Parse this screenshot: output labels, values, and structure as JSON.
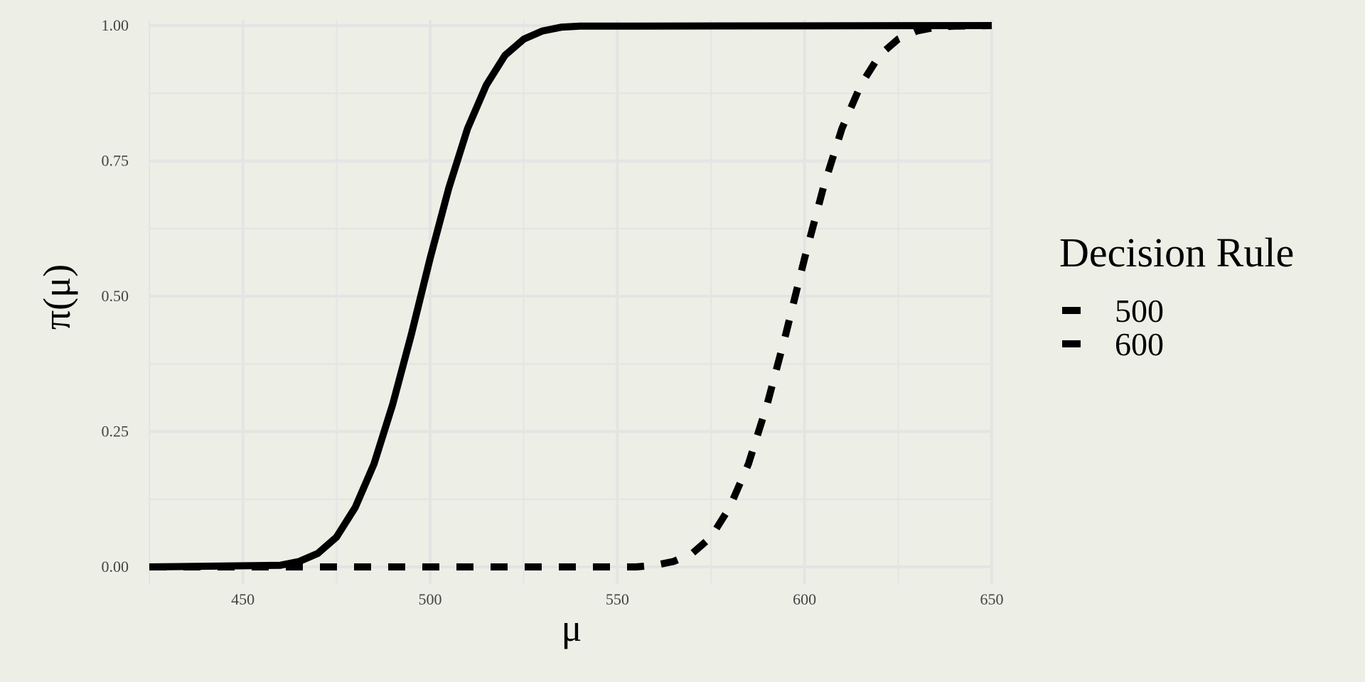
{
  "chart_data": {
    "type": "line",
    "title": "",
    "xlabel": "μ",
    "ylabel": "π(μ)",
    "xlim": [
      425,
      650
    ],
    "ylim": [
      0,
      1
    ],
    "x_ticks": [
      450,
      500,
      550,
      600,
      650
    ],
    "x_tick_labels": [
      "450",
      "500",
      "550",
      "600",
      "650"
    ],
    "y_ticks": [
      0,
      0.25,
      0.5,
      0.75,
      1
    ],
    "y_tick_labels": [
      "0.00",
      "0.25",
      "0.50",
      "0.75",
      "1.00"
    ],
    "grid": true,
    "legend": {
      "title": "Decision Rule",
      "position": "right"
    },
    "series": [
      {
        "name": "500",
        "line_style": "solid",
        "x": [
          425,
          460,
          465,
          470,
          475,
          480,
          485,
          490,
          495,
          500,
          505,
          510,
          515,
          520,
          525,
          530,
          535,
          540,
          650
        ],
        "y": [
          0.0,
          0.003,
          0.01,
          0.025,
          0.055,
          0.11,
          0.19,
          0.3,
          0.43,
          0.57,
          0.7,
          0.81,
          0.89,
          0.945,
          0.975,
          0.99,
          0.997,
          0.999,
          1.0
        ]
      },
      {
        "name": "600",
        "line_style": "dashed",
        "x": [
          425,
          555,
          560,
          565,
          570,
          575,
          580,
          585,
          590,
          595,
          600,
          605,
          610,
          615,
          620,
          625,
          630,
          635,
          640,
          650
        ],
        "y": [
          0.0,
          0.0,
          0.003,
          0.01,
          0.025,
          0.055,
          0.11,
          0.19,
          0.3,
          0.43,
          0.57,
          0.7,
          0.81,
          0.89,
          0.945,
          0.975,
          0.99,
          0.997,
          0.999,
          1.0
        ]
      }
    ],
    "colors": {
      "background": "#edeee6",
      "grid": "#e4e4e4",
      "line": "#000000",
      "tick_text": "#444444"
    }
  }
}
